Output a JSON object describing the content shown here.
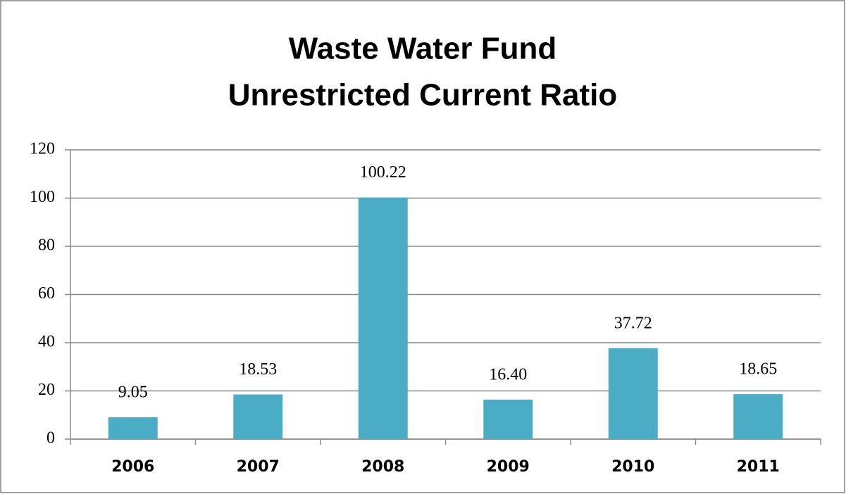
{
  "chart_data": {
    "type": "bar",
    "title": [
      "Waste Water Fund",
      "Unrestricted Current Ratio"
    ],
    "categories": [
      "2006",
      "2007",
      "2008",
      "2009",
      "2010",
      "2011"
    ],
    "values": [
      9.05,
      18.53,
      100.22,
      16.4,
      37.72,
      18.65
    ],
    "value_labels": [
      "9.05",
      "18.53",
      "100.22",
      "16.40",
      "37.72",
      "18.65"
    ],
    "color": "#4bacc6",
    "ylim": [
      0,
      120
    ],
    "yticks": [
      0,
      20,
      40,
      60,
      80,
      100,
      120
    ],
    "grid": true
  }
}
